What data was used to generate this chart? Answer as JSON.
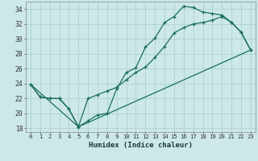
{
  "xlabel": "Humidex (Indice chaleur)",
  "background_color": "#cce8e8",
  "grid_color": "#aacccc",
  "line_color": "#1a6e5c",
  "xlim": [
    -0.5,
    23.5
  ],
  "ylim": [
    17.5,
    35.0
  ],
  "xtick_labels": [
    "0",
    "1",
    "2",
    "3",
    "4",
    "5",
    "6",
    "7",
    "8",
    "9",
    "10",
    "11",
    "12",
    "13",
    "14",
    "15",
    "16",
    "17",
    "18",
    "19",
    "20",
    "21",
    "22",
    "23"
  ],
  "ytick_values": [
    18,
    20,
    22,
    24,
    26,
    28,
    30,
    32,
    34
  ],
  "line1_x": [
    0,
    1,
    2,
    3,
    4,
    5,
    6,
    7,
    8,
    9,
    10,
    11,
    12,
    13,
    14,
    15,
    16,
    17,
    18,
    19,
    20,
    21,
    22,
    23
  ],
  "line1_y": [
    23.9,
    22.2,
    22.0,
    22.0,
    20.6,
    18.2,
    19.0,
    19.8,
    20.0,
    23.3,
    25.5,
    26.1,
    28.9,
    30.1,
    32.2,
    33.0,
    34.4,
    34.2,
    33.6,
    33.4,
    33.2,
    32.2,
    30.9,
    28.5
  ],
  "line2_x": [
    0,
    1,
    2,
    3,
    4,
    5,
    6,
    7,
    8,
    9,
    10,
    11,
    12,
    13,
    14,
    15,
    16,
    17,
    18,
    19,
    20,
    21,
    22,
    23
  ],
  "line2_y": [
    23.9,
    22.2,
    22.0,
    22.0,
    20.6,
    18.2,
    22.0,
    22.5,
    23.0,
    23.5,
    24.5,
    25.5,
    26.2,
    27.5,
    29.0,
    30.8,
    31.5,
    32.0,
    32.2,
    32.5,
    33.0,
    32.2,
    30.9,
    28.5
  ],
  "line3_x": [
    0,
    5,
    23
  ],
  "line3_y": [
    23.9,
    18.2,
    28.5
  ]
}
